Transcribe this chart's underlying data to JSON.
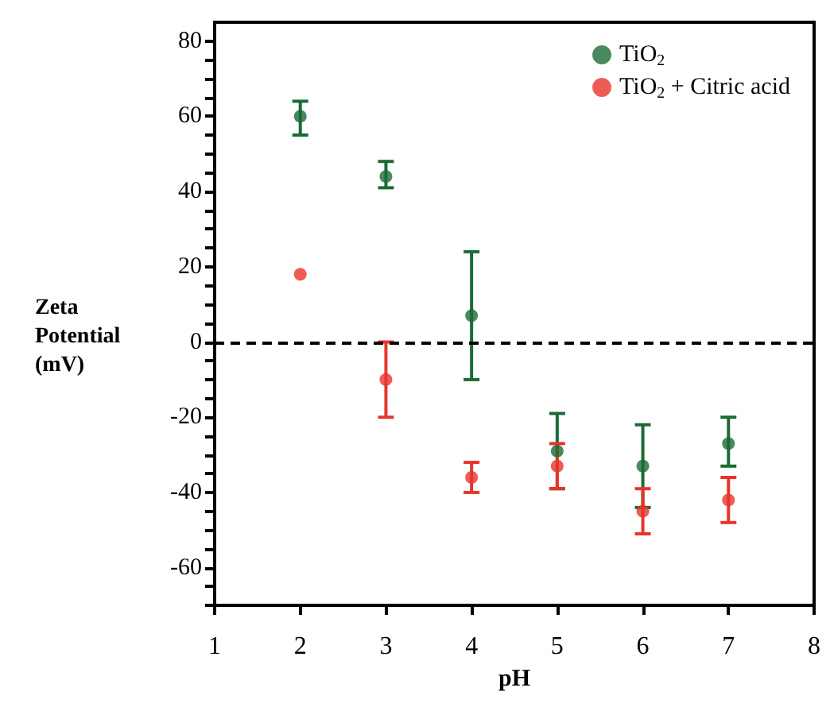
{
  "chart_data": {
    "type": "scatter",
    "xlabel": "pH",
    "ylabel": "Zeta Potential (mV)",
    "x": [
      2,
      3,
      4,
      5,
      6,
      7
    ],
    "series": [
      {
        "name": "TiO$_{2}$",
        "color": "#1a6b35",
        "values": [
          60,
          44,
          7,
          -29,
          -33,
          -27
        ],
        "errors": [
          [
            55,
            64
          ],
          [
            41,
            48
          ],
          [
            -10,
            24
          ],
          [
            -39,
            -19
          ],
          [
            -44,
            -22
          ],
          [
            -33,
            -20
          ]
        ]
      },
      {
        "name": "TiO$_{2}$ + Citric acid",
        "color": "#e8352a",
        "values": [
          18,
          -10,
          -36,
          -33,
          -45,
          -42
        ],
        "errors": [
          null,
          [
            -20,
            0
          ],
          [
            -40,
            -32
          ],
          [
            -39,
            -27
          ],
          [
            -51,
            -39
          ],
          [
            -48,
            -36
          ]
        ]
      }
    ],
    "xlim": [
      1,
      8
    ],
    "xticks": [
      1,
      2,
      3,
      4,
      5,
      6,
      7,
      8
    ],
    "ylim": [
      -70,
      85
    ],
    "yticks": [
      {
        "value": -70,
        "label": null
      },
      {
        "value": -65,
        "label": null
      },
      -60,
      {
        "value": -55,
        "label": null
      },
      {
        "value": -50,
        "label": null
      },
      {
        "value": -45,
        "label": null
      },
      -40,
      {
        "value": -35,
        "label": null
      },
      {
        "value": -30,
        "label": null
      },
      {
        "value": -25,
        "label": null
      },
      -20,
      {
        "value": -15,
        "label": null
      },
      {
        "value": -10,
        "label": null
      },
      {
        "value": -5,
        "label": null
      },
      0,
      {
        "value": 5,
        "label": null
      },
      {
        "value": 10,
        "label": null
      },
      {
        "value": 15,
        "label": null
      },
      20,
      {
        "value": 25,
        "label": null
      },
      {
        "value": 30,
        "label": null
      },
      {
        "value": 35,
        "label": null
      },
      40,
      {
        "value": 45,
        "label": null
      },
      {
        "value": 50,
        "label": null
      },
      {
        "value": 55,
        "label": null
      },
      60,
      {
        "value": 65,
        "label": null
      },
      {
        "value": 70,
        "label": null
      },
      {
        "value": 75,
        "label": null
      },
      80
    ],
    "ref_lines": [
      {
        "axis": "y",
        "value": 0,
        "color": "#000000",
        "line_style": "dashed"
      }
    ],
    "legend": "top right",
    "grid": false,
    "marker": "circle"
  }
}
